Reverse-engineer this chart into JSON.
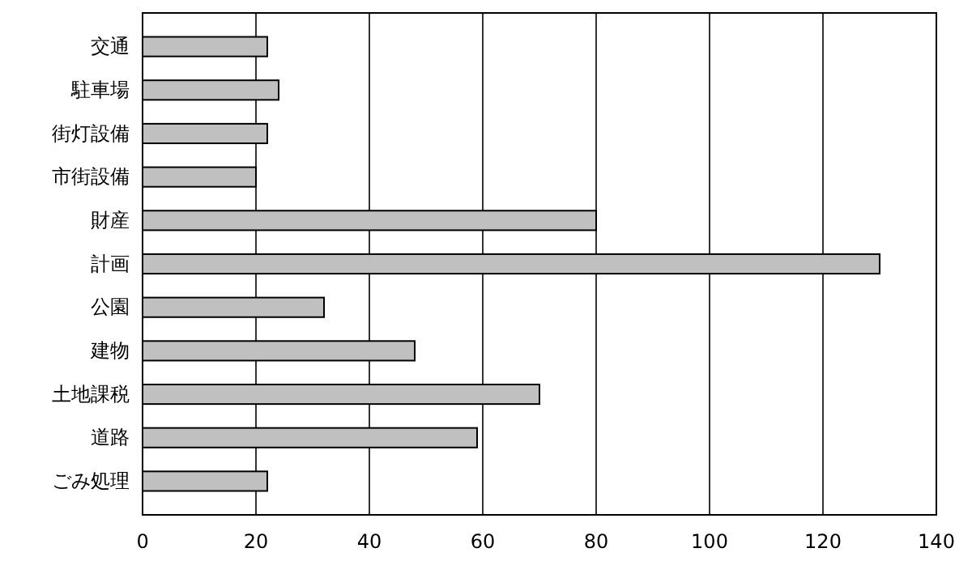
{
  "chart_data": {
    "type": "bar",
    "orientation": "horizontal",
    "categories": [
      "交通",
      "駐車場",
      "街灯設備",
      "市街設備",
      "財産",
      "計画",
      "公園",
      "建物",
      "土地課税",
      "道路",
      "ごみ処理"
    ],
    "values": [
      22,
      24,
      22,
      20,
      80,
      130,
      32,
      48,
      70,
      59,
      22
    ],
    "color": "#c0c0c0",
    "xlim": [
      0,
      140
    ],
    "xticks": [
      0,
      20,
      40,
      60,
      80,
      100,
      120,
      140
    ],
    "grid": "x"
  }
}
